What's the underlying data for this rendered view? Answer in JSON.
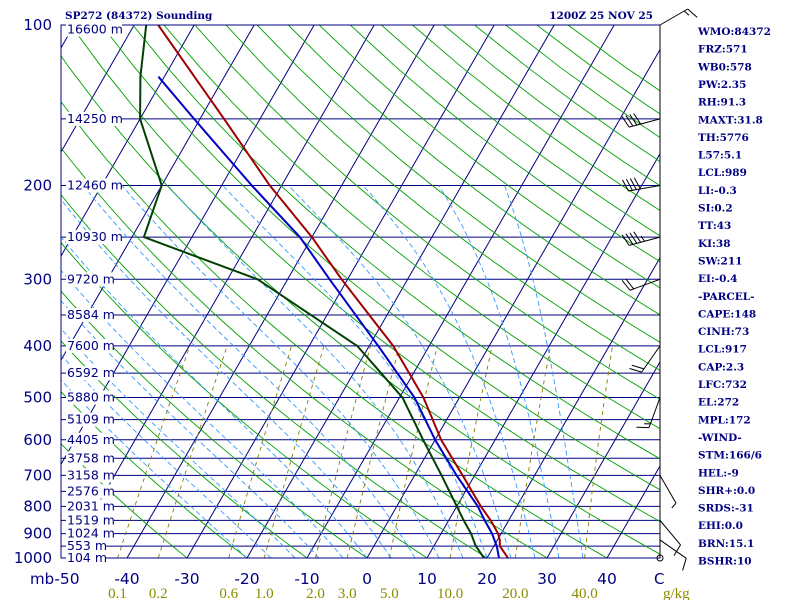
{
  "header": {
    "station": "SP272 (84372) Sounding",
    "time": "1200Z 25 NOV 25"
  },
  "indices": [
    "WMO:84372",
    "FRZ:571",
    "WB0:578",
    "PW:2.35",
    "RH:91.3",
    "MAXT:31.8",
    "TH:5776",
    "L57:5.1",
    "LCL:989",
    "LI:-0.3",
    "SI:0.2",
    "TT:43",
    "KI:38",
    "SW:211",
    "EI:-0.4",
    "-PARCEL-",
    "CAPE:148",
    "CINH:73",
    "LCL:917",
    "CAP:2.3",
    "LFC:732",
    "EL:272",
    "MPL:172",
    "-WIND-",
    "STM:166/6",
    "HEL:-9",
    "SHR+:0.0",
    "SRDS:-31",
    "EHI:0.0",
    "BRN:15.1",
    "BSHR:10"
  ],
  "axes": {
    "x_unit": "mb",
    "mixing_unit": "g/kg",
    "wind_axis_label": "C",
    "pressure_labels": [
      {
        "p": 100,
        "text": "100"
      },
      {
        "p": 200,
        "text": "200"
      },
      {
        "p": 300,
        "text": "300"
      },
      {
        "p": 400,
        "text": "400"
      },
      {
        "p": 500,
        "text": "500"
      },
      {
        "p": 600,
        "text": "600"
      },
      {
        "p": 700,
        "text": "700"
      },
      {
        "p": 800,
        "text": "800"
      },
      {
        "p": 900,
        "text": "900"
      },
      {
        "p": 1000,
        "text": "1000"
      }
    ],
    "height_labels": [
      {
        "p": 102,
        "text": "16600 m"
      },
      {
        "p": 150,
        "text": "14250 m"
      },
      {
        "p": 200,
        "text": "12460 m"
      },
      {
        "p": 250,
        "text": "10930 m"
      },
      {
        "p": 300,
        "text": "9720 m"
      },
      {
        "p": 350,
        "text": "8584 m"
      },
      {
        "p": 400,
        "text": "7600 m"
      },
      {
        "p": 450,
        "text": "6592 m"
      },
      {
        "p": 500,
        "text": "5880 m"
      },
      {
        "p": 550,
        "text": "5109 m"
      },
      {
        "p": 600,
        "text": "4405 m"
      },
      {
        "p": 650,
        "text": "3758 m"
      },
      {
        "p": 700,
        "text": "3158 m"
      },
      {
        "p": 750,
        "text": "2576 m"
      },
      {
        "p": 800,
        "text": "2031 m"
      },
      {
        "p": 850,
        "text": "1519 m"
      },
      {
        "p": 900,
        "text": "1024 m"
      },
      {
        "p": 950,
        "text": "553 m"
      },
      {
        "p": 1000,
        "text": "104 m"
      }
    ],
    "temp_labels": [
      {
        "t": -50,
        "text": "-50"
      },
      {
        "t": -40,
        "text": "-40"
      },
      {
        "t": -30,
        "text": "-30"
      },
      {
        "t": -20,
        "text": "-20"
      },
      {
        "t": -10,
        "text": "-10"
      },
      {
        "t": 0,
        "text": "0"
      },
      {
        "t": 10,
        "text": "10"
      },
      {
        "t": 20,
        "text": "20"
      },
      {
        "t": 30,
        "text": "30"
      },
      {
        "t": 40,
        "text": "40"
      }
    ],
    "mixing_labels": [
      "0.1",
      "0.2",
      "0.6",
      "1.0",
      "2.0",
      "3.0",
      "5.0",
      "10.0",
      "20.0",
      "40.0"
    ]
  },
  "chart_data": {
    "type": "line",
    "title": "SP272 (84372) Sounding",
    "xlabel": "",
    "ylabel": "mb",
    "pressure_range_mb": [
      100,
      1000
    ],
    "pressure_scale": "log",
    "temperature_range_c": [
      -50,
      50
    ],
    "grid": true,
    "series": [
      {
        "points": [
          {
            "p": 1000,
            "t": 23.5
          },
          {
            "p": 950,
            "t": 21.0
          },
          {
            "p": 925,
            "t": 20.4
          },
          {
            "p": 900,
            "t": 19.5
          },
          {
            "p": 850,
            "t": 17.0
          },
          {
            "p": 800,
            "t": 14.0
          },
          {
            "p": 700,
            "t": 8.0
          },
          {
            "p": 600,
            "t": 1.0
          },
          {
            "p": 500,
            "t": -6.0
          },
          {
            "p": 400,
            "t": -16.0
          },
          {
            "p": 300,
            "t": -31.0
          },
          {
            "p": 250,
            "t": -40.0
          },
          {
            "p": 200,
            "t": -52.0
          },
          {
            "p": 150,
            "t": -66.0
          },
          {
            "p": 125,
            "t": -75.0
          },
          {
            "p": 100,
            "t": -86.0
          }
        ]
      },
      {
        "points": [
          {
            "p": 1000,
            "t": 22.0
          },
          {
            "p": 950,
            "t": 20.5
          },
          {
            "p": 925,
            "t": 19.5
          },
          {
            "p": 900,
            "t": 18.5
          },
          {
            "p": 850,
            "t": 16.0
          },
          {
            "p": 800,
            "t": 13.5
          },
          {
            "p": 700,
            "t": 7.0
          },
          {
            "p": 600,
            "t": 0.0
          },
          {
            "p": 500,
            "t": -7.5
          },
          {
            "p": 400,
            "t": -18.5
          },
          {
            "p": 300,
            "t": -33.0
          },
          {
            "p": 250,
            "t": -42.0
          },
          {
            "p": 200,
            "t": -55.0
          },
          {
            "p": 150,
            "t": -71.0
          },
          {
            "p": 125,
            "t": -81.0
          }
        ]
      },
      {
        "points": [
          {
            "p": 1000,
            "t": 19.5
          },
          {
            "p": 950,
            "t": 17.0
          },
          {
            "p": 900,
            "t": 15.0
          },
          {
            "p": 850,
            "t": 12.5
          },
          {
            "p": 800,
            "t": 10.0
          },
          {
            "p": 700,
            "t": 4.5
          },
          {
            "p": 600,
            "t": -2.0
          },
          {
            "p": 500,
            "t": -9.5
          },
          {
            "p": 400,
            "t": -22.0
          },
          {
            "p": 300,
            "t": -45.0
          },
          {
            "p": 250,
            "t": -68.0
          },
          {
            "p": 200,
            "t": -70.0
          },
          {
            "p": 150,
            "t": -80.0
          },
          {
            "p": 125,
            "t": -84.0
          },
          {
            "p": 100,
            "t": -88.0
          }
        ]
      }
    ],
    "wind_barbs": [
      {
        "p": 1000,
        "dir": 0,
        "spd": 0
      },
      {
        "p": 925,
        "dir": 125,
        "spd": 10
      },
      {
        "p": 850,
        "dir": 140,
        "spd": 10
      },
      {
        "p": 700,
        "dir": 150,
        "spd": 5
      },
      {
        "p": 500,
        "dir": 200,
        "spd": 15
      },
      {
        "p": 400,
        "dir": 215,
        "spd": 20
      },
      {
        "p": 300,
        "dir": 250,
        "spd": 20
      },
      {
        "p": 250,
        "dir": 255,
        "spd": 45
      },
      {
        "p": 200,
        "dir": 260,
        "spd": 40
      },
      {
        "p": 150,
        "dir": 255,
        "spd": 40
      },
      {
        "p": 100,
        "dir": 60,
        "spd": 15
      }
    ],
    "colors": {
      "temperature": "#a00000",
      "parcel": "#0000c8",
      "dewpoint": "#004000",
      "isobar": "#000080",
      "isotherm": "#000080",
      "dry_adiabat": "#00a000",
      "moist_adiabat": "#3399ff",
      "mixing_ratio": "#808000",
      "wind": "#000000"
    }
  }
}
